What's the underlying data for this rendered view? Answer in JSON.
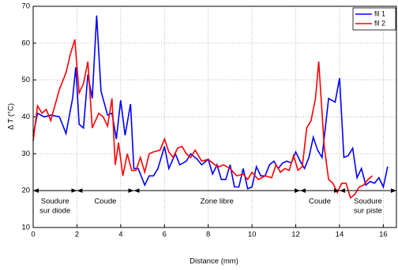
{
  "chart_data": {
    "type": "line",
    "xlabel": "Distance (mm)",
    "ylabel": "Δ T (°C)",
    "xlim": [
      0,
      16.6
    ],
    "ylim": [
      10,
      70
    ],
    "xticks": [
      0,
      2,
      4,
      6,
      8,
      10,
      12,
      14,
      16
    ],
    "yticks": [
      10,
      20,
      30,
      40,
      50,
      60,
      70
    ],
    "grid": true,
    "legend": "upper right",
    "series": [
      {
        "name": "fil 1",
        "color": "#0000ff",
        "x": [
          0,
          0.2,
          0.5,
          0.8,
          1.2,
          1.5,
          1.8,
          1.95,
          2.1,
          2.3,
          2.5,
          2.7,
          2.9,
          3.1,
          3.4,
          3.6,
          3.8,
          4.0,
          4.2,
          4.45,
          4.6,
          4.8,
          5.1,
          5.3,
          5.5,
          5.7,
          6.0,
          6.2,
          6.5,
          6.7,
          7.0,
          7.2,
          7.5,
          7.7,
          8.0,
          8.2,
          8.4,
          8.6,
          8.8,
          9.0,
          9.2,
          9.4,
          9.6,
          9.8,
          10.0,
          10.2,
          10.4,
          10.6,
          10.8,
          11.0,
          11.2,
          11.4,
          11.6,
          11.8,
          12.0,
          12.2,
          12.4,
          12.6,
          12.8,
          13.0,
          13.2,
          13.5,
          13.8,
          14.0,
          14.2,
          14.4,
          14.6,
          14.8,
          15.0,
          15.2,
          15.4,
          15.6,
          15.8,
          16.0,
          16.2
        ],
        "values": [
          35,
          41,
          40,
          40.5,
          40,
          35.5,
          45,
          53.5,
          38,
          37,
          51.5,
          45,
          67.5,
          47,
          40.5,
          41,
          34,
          44.5,
          35,
          43.5,
          26,
          26,
          21.5,
          24,
          24,
          26,
          32,
          26,
          30,
          27,
          28,
          30,
          28.5,
          27,
          28.5,
          24.5,
          27,
          23,
          23,
          27,
          21,
          21,
          26,
          20.5,
          21,
          26.5,
          24,
          24,
          27,
          28,
          26,
          27.5,
          28,
          27.5,
          30.5,
          28,
          26,
          29,
          34.5,
          31,
          29,
          45,
          44,
          50.5,
          29,
          29.5,
          31.5,
          23.5,
          26,
          21.5,
          22.5,
          22,
          23.5,
          21,
          26.5
        ]
      },
      {
        "name": "fil 2",
        "color": "#ff0000",
        "x": [
          0,
          0.2,
          0.4,
          0.6,
          0.8,
          1.2,
          1.5,
          1.7,
          1.9,
          2.1,
          2.3,
          2.5,
          2.7,
          3.0,
          3.2,
          3.4,
          3.6,
          3.75,
          3.9,
          4.1,
          4.3,
          4.5,
          4.7,
          4.9,
          5.1,
          5.3,
          5.5,
          5.8,
          6.0,
          6.2,
          6.4,
          6.6,
          6.8,
          7.0,
          7.2,
          7.4,
          7.7,
          8.0,
          8.3,
          8.5,
          8.7,
          9.0,
          9.3,
          9.6,
          9.8,
          10.0,
          10.3,
          10.6,
          10.9,
          11.1,
          11.3,
          11.5,
          11.7,
          11.9,
          12.1,
          12.3,
          12.5,
          12.7,
          12.9,
          13.05,
          13.3,
          13.5,
          13.7,
          13.9,
          14.1,
          14.3,
          14.5,
          14.7,
          14.9,
          15.1,
          15.3,
          15.5
        ],
        "values": [
          33.5,
          43,
          41,
          42,
          39,
          47.5,
          52,
          57,
          61,
          46.5,
          49,
          55,
          37,
          41,
          40,
          37.5,
          45,
          27,
          33,
          24,
          30,
          25.5,
          25.5,
          29,
          25,
          30,
          30.5,
          31,
          34,
          30.5,
          29,
          31.5,
          32,
          30,
          29,
          31,
          28,
          28.5,
          27,
          26.5,
          27,
          26,
          24,
          24.5,
          23,
          25,
          23,
          24,
          23.5,
          27,
          25,
          26,
          25.5,
          29.5,
          25.5,
          26.5,
          37,
          39,
          45,
          55,
          32,
          23,
          22,
          19.5,
          22,
          22,
          18,
          19,
          21,
          21.5,
          23,
          24
        ]
      }
    ],
    "zones": {
      "arrow_y": 20,
      "boundaries": [
        0,
        2,
        4.6,
        12.2,
        14,
        16.6
      ],
      "labels": [
        {
          "lines": [
            "Soudure",
            "sur diode"
          ]
        },
        {
          "lines": [
            "Coude"
          ]
        },
        {
          "lines": [
            "Zone libre"
          ]
        },
        {
          "lines": [
            "Coude"
          ]
        },
        {
          "lines": [
            "Soudure",
            "sur piste"
          ]
        }
      ]
    }
  }
}
